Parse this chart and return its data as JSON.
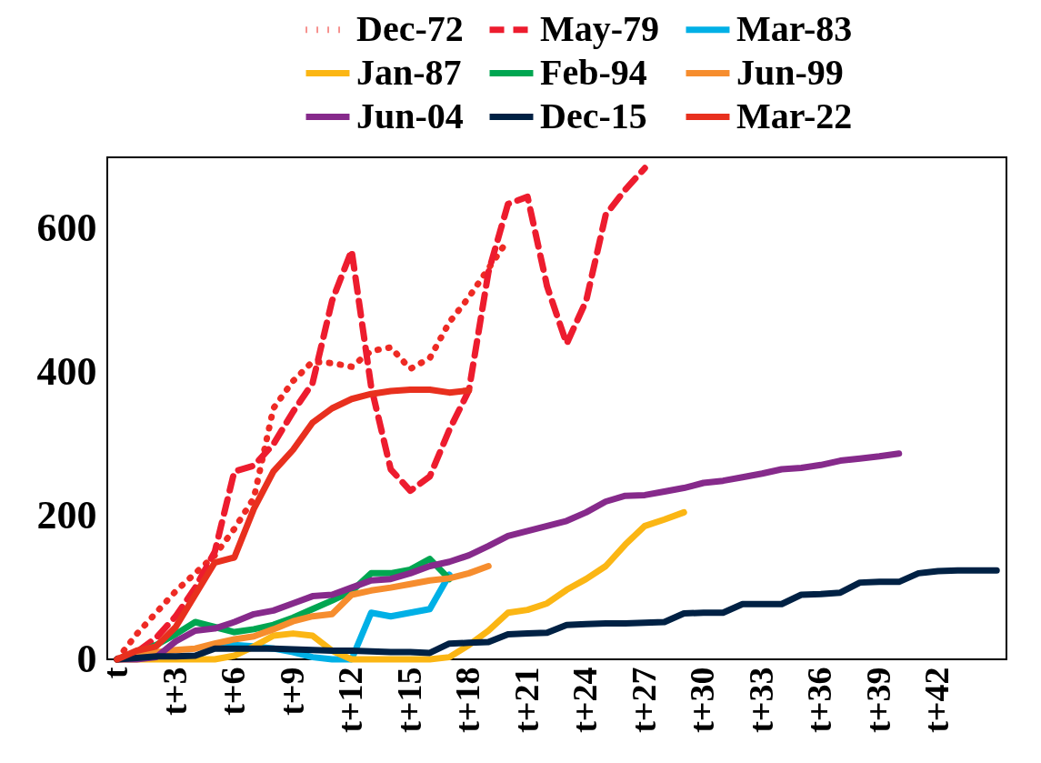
{
  "chart_data": {
    "type": "line",
    "categories": [
      "t",
      null,
      null,
      "t+3",
      null,
      null,
      "t+6",
      null,
      null,
      "t+9",
      null,
      null,
      "t+12",
      null,
      null,
      "t+15",
      null,
      null,
      "t+18",
      null,
      null,
      "t+21",
      null,
      null,
      "t+24",
      null,
      null,
      "t+27",
      null,
      null,
      "t+30",
      null,
      null,
      "t+33",
      null,
      null,
      "t+36",
      null,
      null,
      "t+39",
      null,
      null,
      "t+42",
      null,
      null,
      null
    ],
    "ylim": [
      0,
      700
    ],
    "yticks": [
      0,
      200,
      400,
      600
    ],
    "grid": false,
    "legend": "top",
    "series": [
      {
        "name": "Dec-72",
        "color": "#ee2a24",
        "line_style": "dotted",
        "values": [
          0,
          35,
          65,
          95,
          120,
          145,
          182,
          225,
          350,
          388,
          415,
          413,
          408,
          430,
          435,
          405,
          420,
          470,
          505,
          545,
          585,
          null,
          null,
          null,
          null,
          null,
          null,
          null,
          null,
          null,
          null,
          null,
          null,
          null,
          null,
          null,
          null,
          null,
          null,
          null,
          null,
          null,
          null,
          null,
          null,
          null
        ]
      },
      {
        "name": "May-79",
        "color": "#ed1c2e",
        "line_style": "dashed",
        "values": [
          0,
          10,
          30,
          60,
          100,
          150,
          262,
          270,
          300,
          345,
          385,
          500,
          570,
          380,
          265,
          235,
          255,
          320,
          375,
          540,
          635,
          645,
          520,
          440,
          500,
          620,
          655,
          685,
          null,
          null,
          null,
          null,
          null,
          null,
          null,
          null,
          null,
          null,
          null,
          null,
          null,
          null,
          null,
          null,
          null,
          null
        ]
      },
      {
        "name": "Mar-83",
        "color": "#00b0e6",
        "line_style": "solid",
        "values": [
          null,
          null,
          null,
          null,
          3,
          18,
          20,
          18,
          15,
          10,
          3,
          0,
          0,
          65,
          60,
          65,
          70,
          118,
          null,
          null,
          null,
          null,
          null,
          null,
          null,
          null,
          null,
          null,
          null,
          null,
          null,
          null,
          null,
          null,
          null,
          null,
          null,
          null,
          null,
          null,
          null,
          null,
          null,
          null,
          null,
          null
        ]
      },
      {
        "name": "Jan-87",
        "color": "#fbb614",
        "line_style": "solid",
        "values": [
          0,
          0,
          0,
          0,
          0,
          0,
          5,
          18,
          33,
          36,
          33,
          12,
          0,
          0,
          0,
          0,
          0,
          3,
          20,
          40,
          65,
          69,
          78,
          97,
          112,
          130,
          160,
          186,
          195,
          205,
          null,
          null,
          null,
          null,
          null,
          null,
          null,
          null,
          null,
          null,
          null,
          null,
          null,
          null,
          null,
          null
        ]
      },
      {
        "name": "Feb-94",
        "color": "#00a651",
        "line_style": "solid",
        "values": [
          0,
          8,
          20,
          35,
          52,
          45,
          38,
          42,
          48,
          58,
          70,
          82,
          95,
          120,
          120,
          125,
          140,
          112,
          null,
          null,
          null,
          null,
          null,
          null,
          null,
          null,
          null,
          null,
          null,
          null,
          null,
          null,
          null,
          null,
          null,
          null,
          null,
          null,
          null,
          null,
          null,
          null,
          null,
          null,
          null,
          null
        ]
      },
      {
        "name": "Jun-99",
        "color": "#f68d2e",
        "line_style": "solid",
        "values": [
          0,
          5,
          10,
          13,
          15,
          22,
          28,
          32,
          42,
          53,
          60,
          63,
          90,
          96,
          100,
          105,
          110,
          113,
          120,
          130,
          null,
          null,
          null,
          null,
          null,
          null,
          null,
          null,
          null,
          null,
          null,
          null,
          null,
          null,
          null,
          null,
          null,
          null,
          null,
          null,
          null,
          null,
          null,
          null,
          null,
          null
        ]
      },
      {
        "name": "Jun-04",
        "color": "#862a8b",
        "line_style": "solid",
        "values": [
          0,
          0,
          3,
          25,
          40,
          43,
          52,
          63,
          68,
          78,
          88,
          90,
          100,
          110,
          112,
          120,
          130,
          136,
          145,
          158,
          172,
          179,
          186,
          193,
          205,
          220,
          228,
          229,
          234,
          239,
          246,
          249,
          254,
          259,
          265,
          267,
          271,
          277,
          280,
          283,
          287,
          null,
          null,
          null,
          null,
          null
        ]
      },
      {
        "name": "Dec-15",
        "color": "#002144",
        "line_style": "solid",
        "values": [
          0,
          2,
          4,
          4,
          5,
          15,
          15,
          15,
          15,
          14,
          13,
          12,
          12,
          11,
          10,
          10,
          9,
          22,
          23,
          24,
          35,
          36,
          37,
          48,
          49,
          50,
          50,
          51,
          52,
          64,
          65,
          65,
          77,
          77,
          77,
          90,
          91,
          93,
          107,
          108,
          108,
          120,
          123,
          124,
          124,
          124
        ]
      },
      {
        "name": "Mar-22",
        "color": "#e8301e",
        "line_style": "solid",
        "values": [
          0,
          12,
          18,
          45,
          90,
          135,
          142,
          210,
          262,
          292,
          330,
          350,
          363,
          370,
          374,
          376,
          376,
          372,
          375,
          null,
          null,
          null,
          null,
          null,
          null,
          null,
          null,
          null,
          null,
          null,
          null,
          null,
          null,
          null,
          null,
          null,
          null,
          null,
          null,
          null,
          null,
          null,
          null,
          null,
          null,
          null
        ]
      }
    ]
  }
}
